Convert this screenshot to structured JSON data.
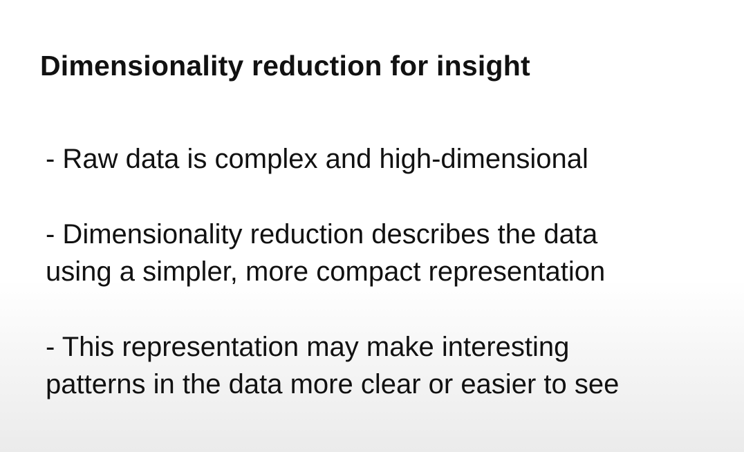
{
  "slide": {
    "title": "Dimensionality reduction for insight",
    "bullets": [
      {
        "lines": [
          "- Raw data is complex and high-dimensional"
        ]
      },
      {
        "lines": [
          "- Dimensionality reduction describes the data",
          "using a simpler, more compact representation"
        ]
      },
      {
        "lines": [
          "- This representation may make interesting",
          "patterns in the data more clear or easier to see"
        ]
      }
    ]
  }
}
